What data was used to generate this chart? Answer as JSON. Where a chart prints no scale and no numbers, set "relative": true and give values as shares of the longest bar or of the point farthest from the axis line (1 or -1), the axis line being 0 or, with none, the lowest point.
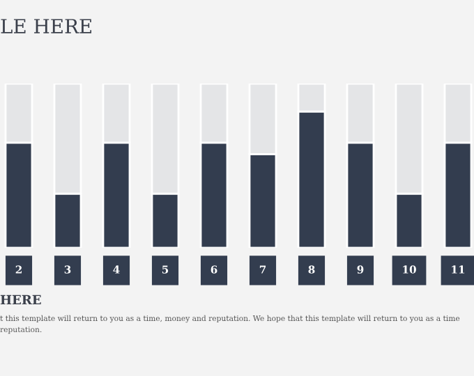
{
  "chart_data": {
    "type": "bar",
    "relative": true,
    "title": "LE HERE",
    "categories": [
      "2",
      "3",
      "4",
      "5",
      "6",
      "7",
      "8",
      "9",
      "10",
      "11"
    ],
    "series": [
      {
        "color": "#333d4f",
        "values": [
          0.64,
          0.33,
          0.64,
          0.33,
          0.64,
          0.57,
          0.83,
          0.64,
          0.33,
          0.64
        ]
      },
      {
        "color": "#e4e5e7",
        "values": [
          0.36,
          0.67,
          0.36,
          0.67,
          0.36,
          0.43,
          0.17,
          0.36,
          0.67,
          0.36
        ]
      }
    ],
    "annotations": [
      "HERE",
      "t this template will return to you as a time, money and reputation. We hope that this template will return to you as a time",
      "reputation."
    ],
    "stacked": true
  }
}
